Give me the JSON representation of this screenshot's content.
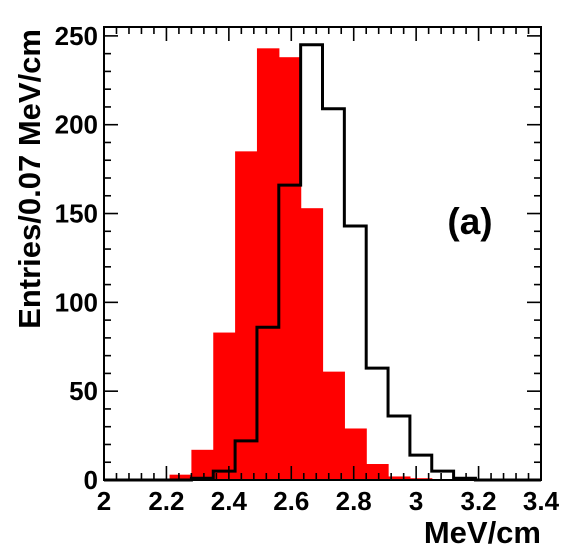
{
  "chart_data": {
    "type": "bar",
    "title": "",
    "xlabel": "MeV/cm",
    "ylabel": "Entries/0.07 MeV/cm",
    "annotation": "(a)",
    "xlim": [
      2.0,
      3.4
    ],
    "ylim": [
      0,
      255
    ],
    "x_ticks": [
      "2",
      "2.2",
      "2.4",
      "2.6",
      "2.8",
      "3",
      "3.2",
      "3.4"
    ],
    "y_ticks": [
      "0",
      "50",
      "100",
      "150",
      "200",
      "250"
    ],
    "grid": false,
    "legend": "none",
    "bin_edges": [
      2.0,
      2.07,
      2.14,
      2.21,
      2.28,
      2.35,
      2.42,
      2.49,
      2.56,
      2.63,
      2.7,
      2.77,
      2.84,
      2.91,
      2.98,
      3.05,
      3.12,
      3.19,
      3.26,
      3.33,
      3.4
    ],
    "series": [
      {
        "style": "filled",
        "color": "#ff0000",
        "values": [
          0,
          0,
          0,
          3,
          17,
          83,
          185,
          243,
          238,
          153,
          61,
          29,
          9,
          2,
          1,
          0,
          0,
          0,
          0,
          0
        ]
      },
      {
        "style": "outline",
        "color": "#000000",
        "values": [
          0,
          0,
          0,
          0,
          1,
          5,
          22,
          86,
          166,
          245,
          209,
          143,
          63,
          36,
          14,
          5,
          1,
          0,
          0,
          0
        ]
      }
    ]
  }
}
